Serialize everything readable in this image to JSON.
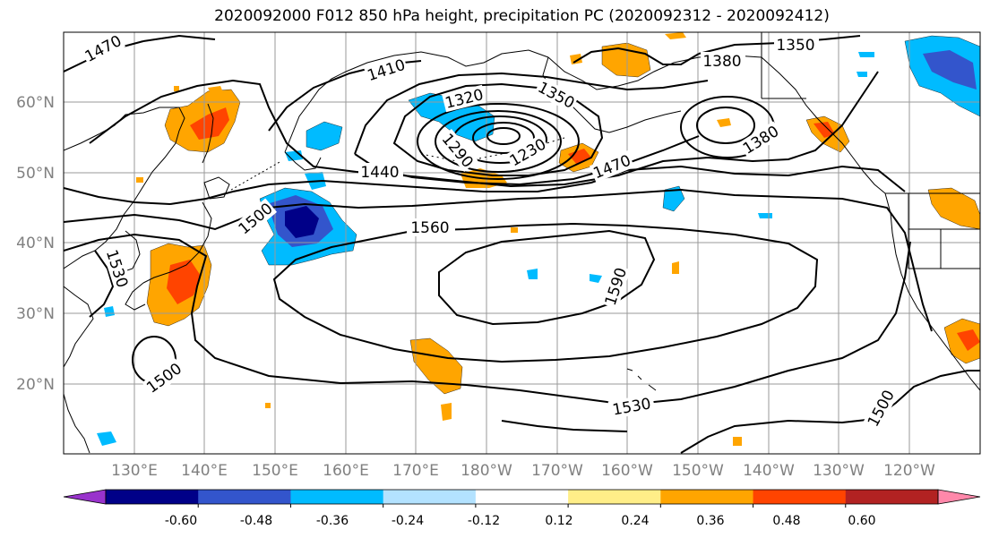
{
  "title": "2020092000 F012 850 hPa height, precipitation PC (2020092312 - 2020092412)",
  "map": {
    "lat_labels": [
      "20°N",
      "30°N",
      "40°N",
      "50°N",
      "60°N"
    ],
    "lon_labels": [
      "130°E",
      "140°E",
      "150°E",
      "160°E",
      "170°E",
      "180°W",
      "170°W",
      "160°W",
      "150°W",
      "140°W",
      "130°W",
      "120°W"
    ],
    "contour_labels": [
      {
        "text": "1470"
      },
      {
        "text": "1410"
      },
      {
        "text": "1320"
      },
      {
        "text": "1350"
      },
      {
        "text": "1290"
      },
      {
        "text": "1230"
      },
      {
        "text": "1380"
      },
      {
        "text": "1350"
      },
      {
        "text": "1380"
      },
      {
        "text": "1440"
      },
      {
        "text": "1470"
      },
      {
        "text": "1500"
      },
      {
        "text": "1560"
      },
      {
        "text": "1590"
      },
      {
        "text": "1530"
      },
      {
        "text": "1500"
      },
      {
        "text": "1530"
      },
      {
        "text": "1500"
      }
    ]
  },
  "colorbar": {
    "colors": [
      "#9933cc",
      "#000088",
      "#3355cc",
      "#00bbff",
      "#b3e2ff",
      "#ffffff",
      "#ffee88",
      "#ffa500",
      "#ff4400",
      "#b22222",
      "#ff88aa"
    ],
    "tick_labels": [
      "-0.60",
      "-0.48",
      "-0.36",
      "-0.24",
      "-0.12",
      "0.12",
      "0.24",
      "0.36",
      "0.48",
      "0.60"
    ]
  }
}
